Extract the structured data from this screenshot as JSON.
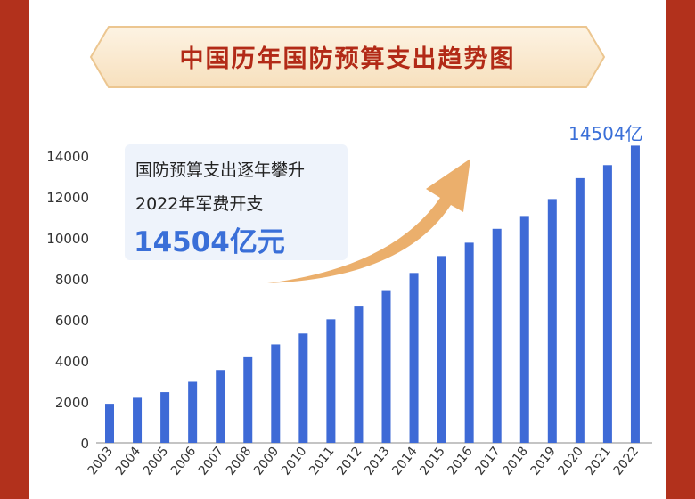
{
  "title": "中国历年国防预算支出趋势图",
  "callout": {
    "line1": "国防预算支出逐年攀升",
    "line2": "2022年军费开支",
    "line3": "14504亿元"
  },
  "top_label": "14504亿",
  "colors": {
    "side_bar": "#b2311c",
    "bar": "#3e6ad6",
    "title": "#b22a17",
    "accent_blue": "#3a6fd8",
    "arrow": "#e9a65c"
  },
  "chart_data": {
    "type": "bar",
    "categories": [
      "2003",
      "2004",
      "2005",
      "2006",
      "2007",
      "2008",
      "2009",
      "2010",
      "2011",
      "2012",
      "2013",
      "2014",
      "2015",
      "2016",
      "2017",
      "2018",
      "2019",
      "2020",
      "2021",
      "2022"
    ],
    "values": [
      1908,
      2200,
      2475,
      2979,
      3555,
      4179,
      4807,
      5335,
      6028,
      6692,
      7410,
      8290,
      9115,
      9766,
      10444,
      11070,
      11896,
      12918,
      13553,
      14504
    ],
    "yticks": [
      0,
      2000,
      4000,
      6000,
      8000,
      10000,
      12000,
      14000
    ],
    "ylim": [
      0,
      14000
    ],
    "grid": false
  }
}
